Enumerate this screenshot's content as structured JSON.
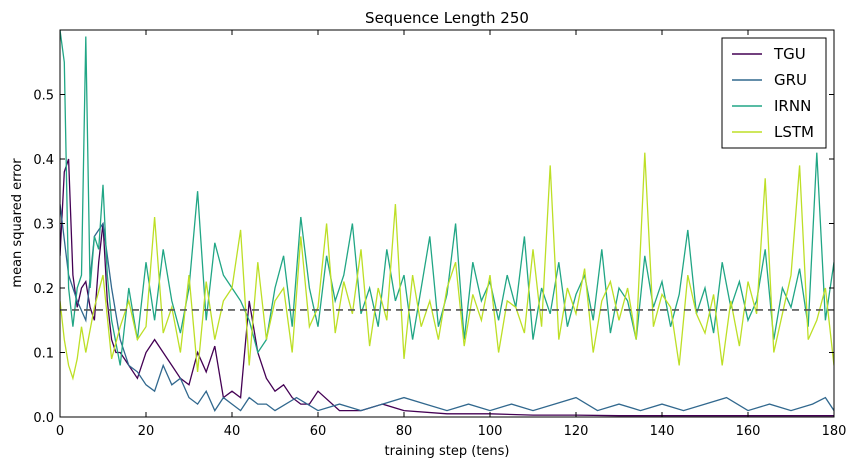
{
  "chart_data": {
    "type": "line",
    "title": "Sequence Length 250",
    "xlabel": "training step (tens)",
    "ylabel": "mean squared error",
    "xlim": [
      0,
      180
    ],
    "ylim": [
      0,
      0.6
    ],
    "xticks": [
      0,
      20,
      40,
      60,
      80,
      100,
      120,
      140,
      160,
      180
    ],
    "yticks": [
      0.0,
      0.1,
      0.2,
      0.3,
      0.4,
      0.5
    ],
    "xtick_labels": [
      "0",
      "20",
      "40",
      "60",
      "80",
      "100",
      "120",
      "140",
      "160",
      "180"
    ],
    "ytick_labels": [
      "0.0",
      "0.1",
      "0.2",
      "0.3",
      "0.4",
      "0.5"
    ],
    "grid": false,
    "legend_position": "top-right",
    "reference_line": {
      "y": 0.166,
      "style": "dashed",
      "color": "#555555"
    },
    "series": [
      {
        "name": "TGU",
        "color": "#440154",
        "x": [
          0,
          1,
          2,
          3,
          4,
          5,
          6,
          7,
          8,
          9,
          10,
          11,
          12,
          13,
          14,
          15,
          16,
          18,
          20,
          22,
          24,
          26,
          28,
          30,
          32,
          34,
          36,
          38,
          40,
          42,
          44,
          46,
          48,
          50,
          52,
          54,
          56,
          58,
          60,
          65,
          70,
          75,
          80,
          90,
          100,
          110,
          120,
          130,
          140,
          150,
          160,
          170,
          180
        ],
        "y": [
          0.25,
          0.38,
          0.4,
          0.22,
          0.17,
          0.2,
          0.21,
          0.17,
          0.15,
          0.24,
          0.3,
          0.18,
          0.12,
          0.1,
          0.1,
          0.09,
          0.08,
          0.06,
          0.1,
          0.12,
          0.1,
          0.08,
          0.06,
          0.05,
          0.1,
          0.07,
          0.11,
          0.03,
          0.04,
          0.03,
          0.18,
          0.1,
          0.06,
          0.04,
          0.05,
          0.03,
          0.02,
          0.02,
          0.04,
          0.01,
          0.01,
          0.02,
          0.01,
          0.005,
          0.005,
          0.003,
          0.003,
          0.002,
          0.002,
          0.002,
          0.002,
          0.002,
          0.002
        ]
      },
      {
        "name": "GRU",
        "color": "#31688e",
        "x": [
          0,
          2,
          4,
          6,
          8,
          10,
          12,
          14,
          16,
          18,
          20,
          22,
          24,
          26,
          28,
          30,
          32,
          34,
          36,
          38,
          40,
          42,
          44,
          46,
          48,
          50,
          55,
          60,
          65,
          70,
          75,
          80,
          85,
          90,
          95,
          100,
          105,
          110,
          115,
          120,
          125,
          130,
          135,
          140,
          145,
          150,
          155,
          160,
          165,
          170,
          175,
          178,
          180
        ],
        "y": [
          0.33,
          0.22,
          0.18,
          0.15,
          0.28,
          0.3,
          0.2,
          0.12,
          0.08,
          0.07,
          0.05,
          0.04,
          0.08,
          0.05,
          0.06,
          0.03,
          0.02,
          0.04,
          0.01,
          0.03,
          0.02,
          0.01,
          0.03,
          0.02,
          0.02,
          0.01,
          0.03,
          0.01,
          0.02,
          0.01,
          0.02,
          0.03,
          0.02,
          0.01,
          0.02,
          0.01,
          0.02,
          0.01,
          0.02,
          0.03,
          0.01,
          0.02,
          0.01,
          0.02,
          0.01,
          0.02,
          0.03,
          0.01,
          0.02,
          0.01,
          0.02,
          0.03,
          0.01
        ]
      },
      {
        "name": "IRNN",
        "color": "#21a685",
        "x": [
          0,
          1,
          2,
          3,
          4,
          5,
          6,
          7,
          8,
          9,
          10,
          11,
          12,
          14,
          16,
          18,
          20,
          22,
          24,
          26,
          28,
          30,
          32,
          34,
          36,
          38,
          40,
          42,
          44,
          46,
          48,
          50,
          52,
          54,
          56,
          58,
          60,
          62,
          64,
          66,
          68,
          70,
          72,
          74,
          76,
          78,
          80,
          82,
          84,
          86,
          88,
          90,
          92,
          94,
          96,
          98,
          100,
          102,
          104,
          106,
          108,
          110,
          112,
          114,
          116,
          118,
          120,
          122,
          124,
          126,
          128,
          130,
          132,
          134,
          136,
          138,
          140,
          142,
          144,
          146,
          148,
          150,
          152,
          154,
          156,
          158,
          160,
          162,
          164,
          166,
          168,
          170,
          172,
          174,
          176,
          178,
          180
        ],
        "y": [
          0.6,
          0.55,
          0.2,
          0.14,
          0.2,
          0.22,
          0.59,
          0.2,
          0.28,
          0.26,
          0.36,
          0.22,
          0.15,
          0.08,
          0.2,
          0.12,
          0.24,
          0.15,
          0.26,
          0.18,
          0.13,
          0.2,
          0.35,
          0.15,
          0.27,
          0.22,
          0.2,
          0.18,
          0.15,
          0.1,
          0.12,
          0.2,
          0.25,
          0.14,
          0.31,
          0.2,
          0.14,
          0.25,
          0.18,
          0.22,
          0.3,
          0.16,
          0.2,
          0.14,
          0.26,
          0.18,
          0.22,
          0.12,
          0.2,
          0.28,
          0.14,
          0.19,
          0.3,
          0.12,
          0.24,
          0.18,
          0.21,
          0.15,
          0.22,
          0.17,
          0.28,
          0.12,
          0.2,
          0.16,
          0.24,
          0.14,
          0.19,
          0.22,
          0.15,
          0.26,
          0.13,
          0.2,
          0.18,
          0.12,
          0.25,
          0.17,
          0.21,
          0.14,
          0.19,
          0.29,
          0.16,
          0.2,
          0.13,
          0.24,
          0.17,
          0.21,
          0.15,
          0.18,
          0.26,
          0.12,
          0.2,
          0.17,
          0.23,
          0.14,
          0.41,
          0.15,
          0.24
        ]
      },
      {
        "name": "LSTM",
        "color": "#bddf26",
        "x": [
          0,
          1,
          2,
          3,
          4,
          5,
          6,
          8,
          10,
          12,
          14,
          16,
          18,
          20,
          22,
          24,
          26,
          28,
          30,
          32,
          34,
          36,
          38,
          40,
          42,
          44,
          46,
          48,
          50,
          52,
          54,
          56,
          58,
          60,
          62,
          64,
          66,
          68,
          70,
          72,
          74,
          76,
          78,
          80,
          82,
          84,
          86,
          88,
          90,
          92,
          94,
          96,
          98,
          100,
          102,
          104,
          106,
          108,
          110,
          112,
          114,
          116,
          118,
          120,
          122,
          124,
          126,
          128,
          130,
          132,
          134,
          136,
          138,
          140,
          142,
          144,
          146,
          148,
          150,
          152,
          154,
          156,
          158,
          160,
          162,
          164,
          166,
          168,
          170,
          172,
          174,
          176,
          178,
          180
        ],
        "y": [
          0.18,
          0.12,
          0.08,
          0.06,
          0.09,
          0.14,
          0.1,
          0.17,
          0.22,
          0.09,
          0.14,
          0.18,
          0.12,
          0.14,
          0.31,
          0.13,
          0.17,
          0.1,
          0.22,
          0.07,
          0.21,
          0.12,
          0.18,
          0.2,
          0.29,
          0.08,
          0.24,
          0.12,
          0.18,
          0.2,
          0.1,
          0.28,
          0.14,
          0.17,
          0.3,
          0.13,
          0.21,
          0.16,
          0.26,
          0.11,
          0.2,
          0.15,
          0.33,
          0.09,
          0.22,
          0.14,
          0.18,
          0.12,
          0.2,
          0.24,
          0.11,
          0.19,
          0.15,
          0.22,
          0.1,
          0.18,
          0.17,
          0.13,
          0.26,
          0.14,
          0.39,
          0.12,
          0.2,
          0.16,
          0.23,
          0.1,
          0.18,
          0.21,
          0.15,
          0.2,
          0.12,
          0.41,
          0.14,
          0.19,
          0.17,
          0.08,
          0.22,
          0.16,
          0.13,
          0.19,
          0.08,
          0.18,
          0.11,
          0.21,
          0.16,
          0.37,
          0.1,
          0.16,
          0.22,
          0.39,
          0.12,
          0.15,
          0.2,
          0.08
        ]
      }
    ]
  }
}
